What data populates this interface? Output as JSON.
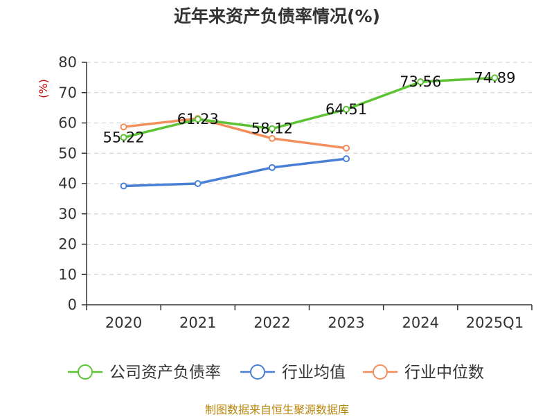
{
  "colors": {
    "company": "#5cc434",
    "industry_avg": "#4a7fd6",
    "industry_median": "#f28e5c",
    "source": "#b8860b",
    "ylabel": "#cc0000"
  },
  "chart_data": {
    "type": "line",
    "title": "近年来资产负债率情况(%)",
    "ylabel": "(%)",
    "xlabel": "",
    "categories": [
      "2020",
      "2021",
      "2022",
      "2023",
      "2024",
      "2025Q1"
    ],
    "ylim": [
      0,
      80
    ],
    "yticks": [
      0,
      10,
      20,
      30,
      40,
      50,
      60,
      70,
      80
    ],
    "grid": "horizontal dashed",
    "legend_position": "bottom",
    "series": [
      {
        "name": "公司资产负债率",
        "color": "#5cc434",
        "values": [
          55.22,
          61.23,
          58.12,
          64.51,
          73.56,
          74.89
        ],
        "labels": [
          "55.22",
          "61.23",
          "58.12",
          "64.51",
          "73.56",
          "74.89"
        ]
      },
      {
        "name": "行业均值",
        "color": "#4a7fd6",
        "values": [
          39.2,
          40.0,
          45.3,
          48.2,
          null,
          null
        ]
      },
      {
        "name": "行业中位数",
        "color": "#f28e5c",
        "values": [
          58.7,
          61.5,
          54.9,
          51.7,
          null,
          null
        ]
      }
    ]
  },
  "source_note": "制图数据来自恒生聚源数据库"
}
